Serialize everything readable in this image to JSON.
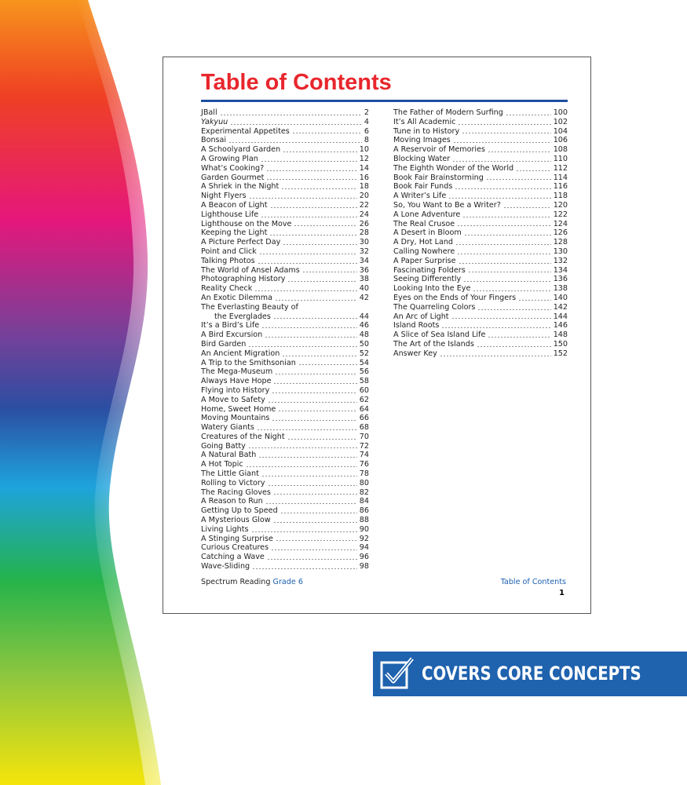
{
  "header": {
    "title": "Table of Contents"
  },
  "toc": {
    "left": [
      {
        "title": "JBall",
        "page": 2
      },
      {
        "title": "Yakyuu",
        "page": 4,
        "italic": true
      },
      {
        "title": "Experimental Appetites",
        "page": 6
      },
      {
        "title": "Bonsai",
        "page": 8
      },
      {
        "title": "A Schoolyard Garden",
        "page": 10
      },
      {
        "title": "A Growing Plan",
        "page": 12
      },
      {
        "title": "What’s Cooking?",
        "page": 14
      },
      {
        "title": "Garden Gourmet",
        "page": 16
      },
      {
        "title": "A Shriek in the Night",
        "page": 18
      },
      {
        "title": "Night Flyers",
        "page": 20
      },
      {
        "title": "A Beacon of Light",
        "page": 22
      },
      {
        "title": "Lighthouse Life",
        "page": 24
      },
      {
        "title": "Lighthouse on the Move",
        "page": 26
      },
      {
        "title": "Keeping the Light",
        "page": 28
      },
      {
        "title": "A Picture Perfect Day",
        "page": 30
      },
      {
        "title": "Point and Click",
        "page": 32
      },
      {
        "title": "Talking Photos",
        "page": 34
      },
      {
        "title": "The World of Ansel Adams",
        "page": 36
      },
      {
        "title": "Photographing History",
        "page": 38
      },
      {
        "title": "Reality Check",
        "page": 40
      },
      {
        "title": "An Exotic Dilemma",
        "page": 42
      },
      {
        "title": "The Everlasting Beauty of",
        "continuation": "the Everglades",
        "page": 44
      },
      {
        "title": "It’s a Bird’s Life",
        "page": 46
      },
      {
        "title": "A Bird Excursion",
        "page": 48
      },
      {
        "title": "Bird Garden",
        "page": 50
      },
      {
        "title": "An Ancient Migration",
        "page": 52
      },
      {
        "title": "A Trip to the Smithsonian",
        "page": 54
      },
      {
        "title": "The Mega-Museum",
        "page": 56
      },
      {
        "title": "Always Have Hope",
        "page": 58
      },
      {
        "title": "Flying into History",
        "page": 60
      },
      {
        "title": "A Move to Safety",
        "page": 62
      },
      {
        "title": "Home, Sweet Home",
        "page": 64
      },
      {
        "title": "Moving Mountains",
        "page": 66
      },
      {
        "title": "Watery Giants",
        "page": 68
      },
      {
        "title": "Creatures of the Night",
        "page": 70
      },
      {
        "title": "Going Batty",
        "page": 72
      },
      {
        "title": "A Natural Bath",
        "page": 74
      },
      {
        "title": "A Hot Topic",
        "page": 76
      },
      {
        "title": "The Little Giant",
        "page": 78
      },
      {
        "title": "Rolling to Victory",
        "page": 80
      },
      {
        "title": "The Racing Gloves",
        "page": 82
      },
      {
        "title": "A Reason to Run",
        "page": 84
      },
      {
        "title": "Getting Up to Speed",
        "page": 86
      },
      {
        "title": "A Mysterious Glow",
        "page": 88
      },
      {
        "title": "Living Lights",
        "page": 90
      },
      {
        "title": "A Stinging Surprise",
        "page": 92
      },
      {
        "title": "Curious Creatures",
        "page": 94
      },
      {
        "title": "Catching a Wave",
        "page": 96
      },
      {
        "title": "Wave-Sliding",
        "page": 98
      }
    ],
    "right": [
      {
        "title": "The Father of Modern Surfing",
        "page": 100
      },
      {
        "title": "It’s All Academic",
        "page": 102
      },
      {
        "title": "Tune in to History",
        "page": 104
      },
      {
        "title": "Moving Images",
        "page": 106
      },
      {
        "title": "A Reservoir of Memories",
        "page": 108
      },
      {
        "title": "Blocking Water",
        "page": 110
      },
      {
        "title": "The Eighth Wonder of the World",
        "page": 112
      },
      {
        "title": "Book Fair Brainstorming",
        "page": 114
      },
      {
        "title": "Book Fair Funds",
        "page": 116
      },
      {
        "title": "A Writer’s Life",
        "page": 118
      },
      {
        "title": "So, You Want to Be a Writer?",
        "page": 120
      },
      {
        "title": "A Lone Adventure",
        "page": 122
      },
      {
        "title": "The Real Crusoe",
        "page": 124
      },
      {
        "title": "A Desert in Bloom",
        "page": 126
      },
      {
        "title": "A Dry, Hot Land",
        "page": 128
      },
      {
        "title": "Calling Nowhere",
        "page": 130
      },
      {
        "title": "A Paper Surprise",
        "page": 132
      },
      {
        "title": "Fascinating Folders",
        "page": 134
      },
      {
        "title": "Seeing Differently",
        "page": 136
      },
      {
        "title": "Looking Into the Eye",
        "page": 138
      },
      {
        "title": "Eyes on the Ends of Your Fingers",
        "page": 140
      },
      {
        "title": "The Quarreling Colors",
        "page": 142
      },
      {
        "title": "An Arc of Light",
        "page": 144
      },
      {
        "title": "Island Roots",
        "page": 146
      },
      {
        "title": "A Slice of Sea Island Life",
        "page": 148
      },
      {
        "title": "The Art of the Islands",
        "page": 150
      },
      {
        "title": "Answer Key",
        "page": 152
      }
    ]
  },
  "footer": {
    "series": "Spectrum Reading",
    "grade": "Grade 6",
    "section": "Table of Contents",
    "page_number": 1
  },
  "banner": {
    "text": "COVERS CORE CONCEPTS"
  }
}
